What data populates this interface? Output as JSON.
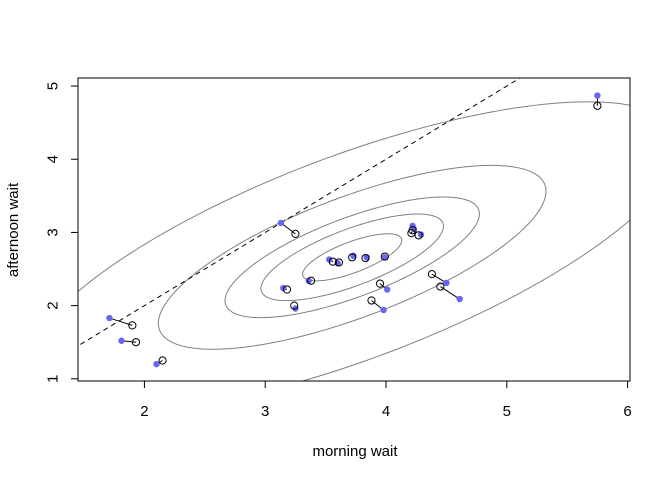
{
  "chart_data": {
    "type": "scatter",
    "title": "",
    "xlabel": "morning wait",
    "ylabel": "afternoon wait",
    "xlim": [
      1.45,
      6.02
    ],
    "ylim": [
      0.97,
      5.11
    ],
    "xticks": [
      "2",
      "3",
      "4",
      "5",
      "6"
    ],
    "yticks": [
      "1",
      "2",
      "3",
      "4",
      "5"
    ],
    "grid": false,
    "colors": {
      "raw_points": "#6666ee",
      "shrunk_points": "#000000",
      "contours": "#808080",
      "reference_line": "#000000"
    },
    "reference_line": {
      "style": "dashed",
      "intercept": 0,
      "slope": 1
    },
    "contours": {
      "center": [
        3.72,
        2.66
      ],
      "covariance": [
        [
          0.8,
          0.45
        ],
        [
          0.45,
          0.49
        ]
      ],
      "levels": [
        0.1,
        0.3,
        0.5,
        0.8,
        0.99
      ]
    },
    "points": [
      {
        "raw": [
          1.71,
          1.83
        ],
        "shrunk": [
          1.9,
          1.73
        ]
      },
      {
        "raw": [
          1.81,
          1.52
        ],
        "shrunk": [
          1.93,
          1.5
        ]
      },
      {
        "raw": [
          2.1,
          1.2
        ],
        "shrunk": [
          2.15,
          1.25
        ]
      },
      {
        "raw": [
          3.13,
          3.13
        ],
        "shrunk": [
          3.25,
          2.98
        ]
      },
      {
        "raw": [
          3.15,
          2.24
        ],
        "shrunk": [
          3.18,
          2.22
        ]
      },
      {
        "raw": [
          3.25,
          1.96
        ],
        "shrunk": [
          3.24,
          2.0
        ]
      },
      {
        "raw": [
          3.36,
          2.34
        ],
        "shrunk": [
          3.38,
          2.34
        ]
      },
      {
        "raw": [
          3.53,
          2.63
        ],
        "shrunk": [
          3.56,
          2.6
        ]
      },
      {
        "raw": [
          3.6,
          2.58
        ],
        "shrunk": [
          3.61,
          2.59
        ]
      },
      {
        "raw": [
          3.73,
          2.68
        ],
        "shrunk": [
          3.72,
          2.66
        ]
      },
      {
        "raw": [
          3.84,
          2.66
        ],
        "shrunk": [
          3.83,
          2.65
        ]
      },
      {
        "raw": [
          3.99,
          2.66
        ],
        "shrunk": [
          3.99,
          2.67
        ]
      },
      {
        "raw": [
          4.01,
          2.22
        ],
        "shrunk": [
          3.95,
          2.3
        ]
      },
      {
        "raw": [
          3.98,
          1.94
        ],
        "shrunk": [
          3.88,
          2.07
        ]
      },
      {
        "raw": [
          4.22,
          3.09
        ],
        "shrunk": [
          4.22,
          3.03
        ]
      },
      {
        "raw": [
          4.23,
          3.05
        ],
        "shrunk": [
          4.21,
          2.99
        ]
      },
      {
        "raw": [
          4.29,
          2.97
        ],
        "shrunk": [
          4.27,
          2.96
        ]
      },
      {
        "raw": [
          4.5,
          2.31
        ],
        "shrunk": [
          4.38,
          2.43
        ]
      },
      {
        "raw": [
          4.61,
          2.09
        ],
        "shrunk": [
          4.45,
          2.26
        ]
      },
      {
        "raw": [
          5.75,
          4.87
        ],
        "shrunk": [
          5.75,
          4.73
        ]
      }
    ]
  }
}
